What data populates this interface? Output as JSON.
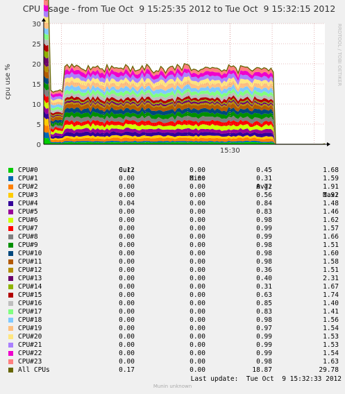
{
  "title": "CPU usage - from Tue Oct  9 15:25:35 2012 to Tue Oct  9 15:32:15 2012",
  "watermark": "RRDTOOL / TOBI OETIKER",
  "chart_data": {
    "type": "area",
    "stacked": true,
    "title": "CPU usage - from Tue Oct  9 15:25:35 2012 to Tue Oct  9 15:32:15 2012",
    "ylabel": "cpu use %",
    "xlabel": "",
    "ylim": [
      0,
      30
    ],
    "yticks": [
      0,
      5,
      10,
      15,
      20,
      25,
      30
    ],
    "xticks": [
      "15:30"
    ],
    "grid": true,
    "time_range": [
      "15:25:35",
      "15:32:15"
    ],
    "active_until": "15:31:00",
    "series": [
      {
        "name": "CPU#0",
        "color": "#00cc00",
        "cur": "0.12",
        "min": "0.00",
        "avg": "0.45",
        "max": "1.68"
      },
      {
        "name": "CPU#1",
        "color": "#0066b3",
        "cur": "0.00",
        "min": "0.00",
        "avg": "0.31",
        "max": "1.59"
      },
      {
        "name": "CPU#2",
        "color": "#ff8000",
        "cur": "0.00",
        "min": "0.00",
        "avg": "0.72",
        "max": "1.91"
      },
      {
        "name": "CPU#3",
        "color": "#ffcc00",
        "cur": "0.00",
        "min": "0.00",
        "avg": "0.56",
        "max": "1.92"
      },
      {
        "name": "CPU#4",
        "color": "#330099",
        "cur": "0.04",
        "min": "0.00",
        "avg": "0.84",
        "max": "1.48"
      },
      {
        "name": "CPU#5",
        "color": "#990099",
        "cur": "0.00",
        "min": "0.00",
        "avg": "0.83",
        "max": "1.46"
      },
      {
        "name": "CPU#6",
        "color": "#ccff00",
        "cur": "0.00",
        "min": "0.00",
        "avg": "0.98",
        "max": "1.62"
      },
      {
        "name": "CPU#7",
        "color": "#ff0000",
        "cur": "0.00",
        "min": "0.00",
        "avg": "0.99",
        "max": "1.57"
      },
      {
        "name": "CPU#8",
        "color": "#808080",
        "cur": "0.00",
        "min": "0.00",
        "avg": "0.99",
        "max": "1.66"
      },
      {
        "name": "CPU#9",
        "color": "#008f00",
        "cur": "0.00",
        "min": "0.00",
        "avg": "0.98",
        "max": "1.51"
      },
      {
        "name": "CPU#10",
        "color": "#00487d",
        "cur": "0.00",
        "min": "0.00",
        "avg": "0.98",
        "max": "1.60"
      },
      {
        "name": "CPU#11",
        "color": "#b35a00",
        "cur": "0.00",
        "min": "0.00",
        "avg": "0.98",
        "max": "1.58"
      },
      {
        "name": "CPU#12",
        "color": "#b38f00",
        "cur": "0.00",
        "min": "0.00",
        "avg": "0.36",
        "max": "1.51"
      },
      {
        "name": "CPU#13",
        "color": "#6b006b",
        "cur": "0.00",
        "min": "0.00",
        "avg": "0.40",
        "max": "2.31"
      },
      {
        "name": "CPU#14",
        "color": "#8fb300",
        "cur": "0.00",
        "min": "0.00",
        "avg": "0.31",
        "max": "1.67"
      },
      {
        "name": "CPU#15",
        "color": "#b30000",
        "cur": "0.00",
        "min": "0.00",
        "avg": "0.63",
        "max": "1.74"
      },
      {
        "name": "CPU#16",
        "color": "#bebebe",
        "cur": "0.00",
        "min": "0.00",
        "avg": "0.85",
        "max": "1.40"
      },
      {
        "name": "CPU#17",
        "color": "#80ff80",
        "cur": "0.00",
        "min": "0.00",
        "avg": "0.83",
        "max": "1.41"
      },
      {
        "name": "CPU#18",
        "color": "#80c9ff",
        "cur": "0.00",
        "min": "0.00",
        "avg": "0.98",
        "max": "1.56"
      },
      {
        "name": "CPU#19",
        "color": "#ffc080",
        "cur": "0.00",
        "min": "0.00",
        "avg": "0.97",
        "max": "1.54"
      },
      {
        "name": "CPU#20",
        "color": "#ffe680",
        "cur": "0.00",
        "min": "0.00",
        "avg": "0.99",
        "max": "1.53"
      },
      {
        "name": "CPU#21",
        "color": "#aa80ff",
        "cur": "0.00",
        "min": "0.00",
        "avg": "0.99",
        "max": "1.53"
      },
      {
        "name": "CPU#22",
        "color": "#ee00cc",
        "cur": "0.00",
        "min": "0.00",
        "avg": "0.99",
        "max": "1.54"
      },
      {
        "name": "CPU#23",
        "color": "#ff8080",
        "cur": "0.00",
        "min": "0.00",
        "avg": "0.98",
        "max": "1.63"
      }
    ],
    "total": {
      "name": "All CPUs",
      "color": "#666600",
      "cur": "0.17",
      "min": "0.00",
      "avg": "18.87",
      "max": "29.78"
    }
  },
  "legend_headers": {
    "cur": "Cur:",
    "min": "Min:",
    "avg": "Avg:",
    "max": "Max:"
  },
  "last_update": "Last update:  Tue Oct  9 15:32:33 2012",
  "footer": "Munin unknown"
}
